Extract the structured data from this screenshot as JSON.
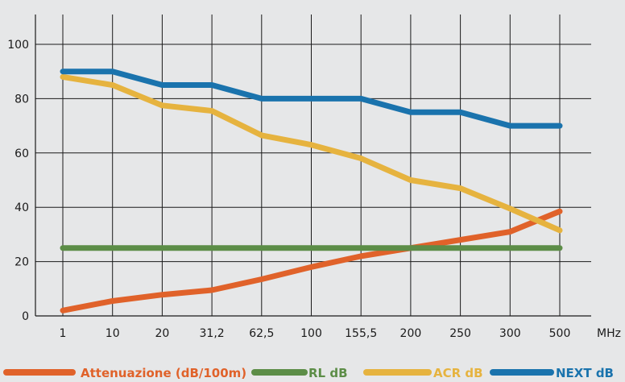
{
  "chart_data": {
    "type": "line",
    "title": "",
    "xlabel": "MHz",
    "ylabel": "",
    "categories": [
      "1",
      "10",
      "20",
      "31,2",
      "62,5",
      "100",
      "155,5",
      "200",
      "250",
      "300",
      "500"
    ],
    "ylim": [
      0,
      100
    ],
    "yticks": [
      0,
      20,
      40,
      60,
      80,
      100
    ],
    "grid": true,
    "legend_position": "bottom",
    "series": [
      {
        "name": "Attenuazione (dB/100m)",
        "color": "#e0622a",
        "values": [
          2,
          5.5,
          7.8,
          9.5,
          13.5,
          18,
          22,
          25,
          28,
          31,
          38.5
        ]
      },
      {
        "name": "RL dB",
        "color": "#5c8d47",
        "values": [
          25,
          25,
          25,
          25,
          25,
          25,
          25,
          25,
          25,
          25,
          25
        ]
      },
      {
        "name": "ACR dB",
        "color": "#e6b33f",
        "values": [
          88,
          85,
          77.5,
          75.5,
          66.5,
          63,
          58,
          50,
          47,
          39.5,
          31.5
        ]
      },
      {
        "name": "NEXT dB",
        "color": "#1a73ad",
        "values": [
          90,
          90,
          85,
          85,
          80,
          80,
          80,
          75,
          75,
          70,
          70
        ]
      }
    ]
  }
}
